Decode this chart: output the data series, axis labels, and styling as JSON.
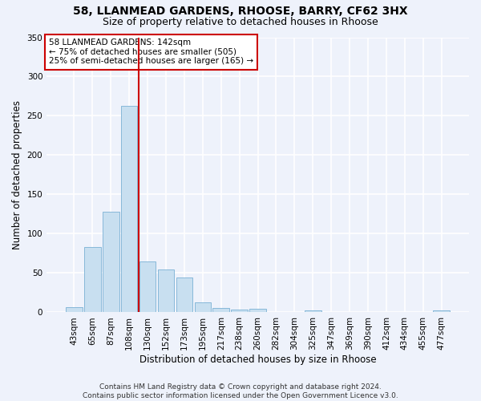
{
  "title1": "58, LLANMEAD GARDENS, RHOOSE, BARRY, CF62 3HX",
  "title2": "Size of property relative to detached houses in Rhoose",
  "xlabel": "Distribution of detached houses by size in Rhoose",
  "ylabel": "Number of detached properties",
  "bin_labels": [
    "43sqm",
    "65sqm",
    "87sqm",
    "108sqm",
    "130sqm",
    "152sqm",
    "173sqm",
    "195sqm",
    "217sqm",
    "238sqm",
    "260sqm",
    "282sqm",
    "304sqm",
    "325sqm",
    "347sqm",
    "369sqm",
    "390sqm",
    "412sqm",
    "434sqm",
    "455sqm",
    "477sqm"
  ],
  "bar_values": [
    7,
    83,
    128,
    263,
    65,
    55,
    44,
    13,
    6,
    4,
    5,
    0,
    0,
    3,
    0,
    0,
    0,
    0,
    0,
    0,
    3
  ],
  "bar_color": "#c8dff0",
  "bar_edge_color": "#7ab0d4",
  "bg_color": "#eef2fb",
  "grid_color": "#ffffff",
  "vline_color": "#cc0000",
  "annotation_text": "58 LLANMEAD GARDENS: 142sqm\n← 75% of detached houses are smaller (505)\n25% of semi-detached houses are larger (165) →",
  "annotation_box_color": "#ffffff",
  "annotation_box_edge": "#cc0000",
  "ylim": [
    0,
    350
  ],
  "yticks": [
    0,
    50,
    100,
    150,
    200,
    250,
    300,
    350
  ],
  "footnote": "Contains HM Land Registry data © Crown copyright and database right 2024.\nContains public sector information licensed under the Open Government Licence v3.0.",
  "title_fontsize": 10,
  "subtitle_fontsize": 9,
  "axis_label_fontsize": 8.5,
  "tick_fontsize": 7.5,
  "annotation_fontsize": 7.5,
  "footnote_fontsize": 6.5,
  "vline_bin_index": 4
}
